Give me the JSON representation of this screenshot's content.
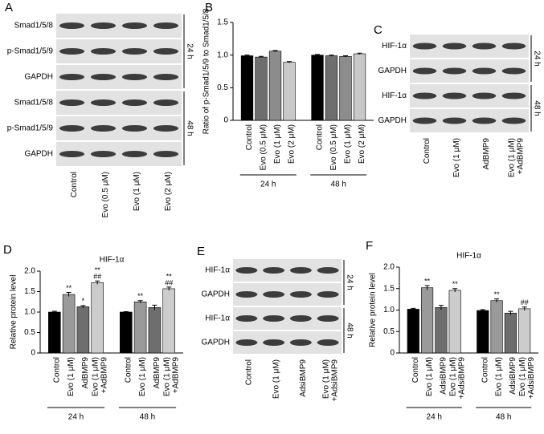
{
  "chart_data": [
    {
      "panel": "B",
      "type": "bar",
      "ylabel": "Ratio of p-Smad1/5/9 to Smad1/5/8",
      "categories": [
        "Control",
        "Evo (0.5 μM)",
        "Evo (1 μM)",
        "Evo (2 μM)"
      ],
      "colors": [
        "#000000",
        "#6e6e6e",
        "#8c8c8c",
        "#c8c8c8"
      ],
      "groups": [
        {
          "name": "24 h",
          "values": [
            0.99,
            0.97,
            1.06,
            0.89
          ],
          "errors": [
            0.01,
            0.01,
            0.01,
            0.01
          ]
        },
        {
          "name": "48 h",
          "values": [
            1.0,
            0.99,
            0.98,
            1.02
          ],
          "errors": [
            0.01,
            0.01,
            0.01,
            0.01
          ]
        }
      ],
      "ylim": [
        0,
        1.5
      ],
      "yticks": [
        0,
        0.5,
        {
          "value": 1,
          "label": "1.0"
        },
        1.5
      ]
    },
    {
      "panel": "D",
      "type": "bar",
      "title": "HIF-1α",
      "ylabel": "Relative protein level",
      "categories": [
        "Control",
        "Evo (1 μM)",
        "AdBMP9",
        [
          "Evo (1 μM)",
          "+AdBMP9"
        ]
      ],
      "colors": [
        "#000000",
        "#9a9a9a",
        "#6e6e6e",
        "#cccccc"
      ],
      "groups": [
        {
          "name": "24 h",
          "values": [
            1.0,
            1.43,
            1.13,
            1.72
          ],
          "errors": [
            0.02,
            0.05,
            0.03,
            0.04
          ],
          "significance": [
            [],
            [
              "**"
            ],
            [
              "*"
            ],
            [
              "**",
              "##"
            ]
          ]
        },
        {
          "name": "48 h",
          "values": [
            1.0,
            1.25,
            1.11,
            1.57
          ],
          "errors": [
            0.01,
            0.03,
            0.06,
            0.04
          ],
          "significance": [
            [],
            [
              "**"
            ],
            [],
            [
              "**",
              "##"
            ]
          ]
        }
      ],
      "ylim": [
        0,
        2
      ],
      "yticks": [
        0,
        0.5,
        {
          "value": 1,
          "label": "1.0"
        },
        1.5,
        {
          "value": 2,
          "label": "2.0"
        }
      ]
    },
    {
      "panel": "F",
      "type": "bar",
      "title": "HIF-1α",
      "ylabel": "Relative protein level",
      "categories": [
        "Control",
        "Evo (1 μM)",
        "AdsiBMP9",
        [
          "Evo (1 μM)",
          "+AdsiBMP9"
        ]
      ],
      "colors": [
        "#000000",
        "#9a9a9a",
        "#6e6e6e",
        "#cccccc"
      ],
      "groups": [
        {
          "name": "24 h",
          "values": [
            1.02,
            1.52,
            1.06,
            1.46
          ],
          "errors": [
            0.02,
            0.05,
            0.05,
            0.04
          ],
          "significance": [
            [],
            [
              "**"
            ],
            [],
            [
              "**"
            ]
          ]
        },
        {
          "name": "48 h",
          "values": [
            0.99,
            1.22,
            0.93,
            1.03
          ],
          "errors": [
            0.02,
            0.04,
            0.04,
            0.04
          ],
          "significance": [
            [],
            [
              "**"
            ],
            [],
            [
              "##"
            ]
          ]
        }
      ],
      "ylim": [
        0,
        2
      ],
      "yticks": [
        0,
        0.5,
        {
          "value": 1,
          "label": "1.0"
        },
        1.5,
        {
          "value": 2,
          "label": "2.0"
        }
      ]
    }
  ],
  "blots": [
    {
      "panel": "A",
      "rows": [
        "Smad1/5/8",
        "p-Smad1/5/9",
        "GAPDH",
        "Smad1/5/8",
        "p-Smad1/5/9",
        "GAPDH"
      ],
      "times": [
        "24 h",
        "48 h"
      ],
      "lanes": [
        "Control",
        "Evo (0.5 μM)",
        "Evo (1 μM)",
        "Evo (2 μM)"
      ]
    },
    {
      "panel": "C",
      "rows": [
        "HIF-1α",
        "GAPDH",
        "HIF-1α",
        "GAPDH"
      ],
      "times": [
        "24 h",
        "48 h"
      ],
      "lanes": [
        "Control",
        "Evo (1 μM)",
        "AdBMP9",
        [
          "Evo (1 μM)",
          "+AdBMP9"
        ]
      ]
    },
    {
      "panel": "E",
      "rows": [
        "HIF-1α",
        "GAPDH",
        "HIF-1α",
        "GAPDH"
      ],
      "times": [
        "24 h",
        "48 h"
      ],
      "lanes": [
        "Control",
        "Evo (1 μM)",
        "AdsiBMP9",
        [
          "Evo (1 μM)",
          "+AdsiBMP9"
        ]
      ]
    }
  ]
}
